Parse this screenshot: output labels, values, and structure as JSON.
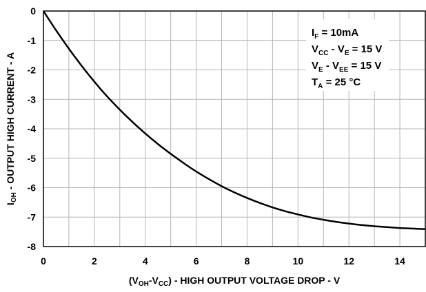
{
  "chart_data": {
    "type": "line",
    "title": "",
    "xlabel": {
      "prefix": "(V",
      "sub1": "OH",
      "mid": "-V",
      "sub2": "CC",
      "suffix": ") - HIGH OUTPUT VOLTAGE DROP - V"
    },
    "ylabel": {
      "prefix": "I",
      "sub": "OH",
      "suffix": " - OUTPUT HIGH CURRENT - A"
    },
    "xlim": [
      0,
      15
    ],
    "ylim": [
      -8,
      0
    ],
    "x_ticks": [
      "0",
      "2",
      "4",
      "6",
      "8",
      "10",
      "12",
      "14"
    ],
    "y_ticks": [
      "0",
      "-1",
      "-2",
      "-3",
      "-4",
      "-5",
      "-6",
      "-7",
      "-8"
    ],
    "grid": true,
    "annotations": [
      {
        "main": "I",
        "sub": "F",
        "rest": " = 10mA"
      },
      {
        "main": "V",
        "sub": "CC",
        "mid": " - V",
        "sub2": "E",
        "rest": " = 15 V"
      },
      {
        "main": "V",
        "sub": "E",
        "mid": " - V",
        "sub2": "EE",
        "rest": " = 15 V"
      },
      {
        "main": "T",
        "sub": "A",
        "rest": " = 25 °C"
      }
    ],
    "series": [
      {
        "color": "#000000",
        "x": [
          0,
          0.5,
          1,
          1.5,
          2,
          2.5,
          3,
          3.5,
          4,
          4.5,
          5,
          5.5,
          6,
          6.5,
          7,
          7.5,
          8,
          8.5,
          9,
          9.5,
          10,
          10.5,
          11,
          11.5,
          12,
          12.5,
          13,
          13.5,
          14,
          14.5,
          15
        ],
        "y": [
          0,
          -0.66,
          -1.28,
          -1.86,
          -2.4,
          -2.9,
          -3.35,
          -3.77,
          -4.16,
          -4.52,
          -4.85,
          -5.16,
          -5.45,
          -5.71,
          -5.95,
          -6.16,
          -6.35,
          -6.52,
          -6.67,
          -6.8,
          -6.91,
          -7.01,
          -7.09,
          -7.16,
          -7.22,
          -7.27,
          -7.31,
          -7.34,
          -7.37,
          -7.39,
          -7.41
        ]
      }
    ]
  }
}
